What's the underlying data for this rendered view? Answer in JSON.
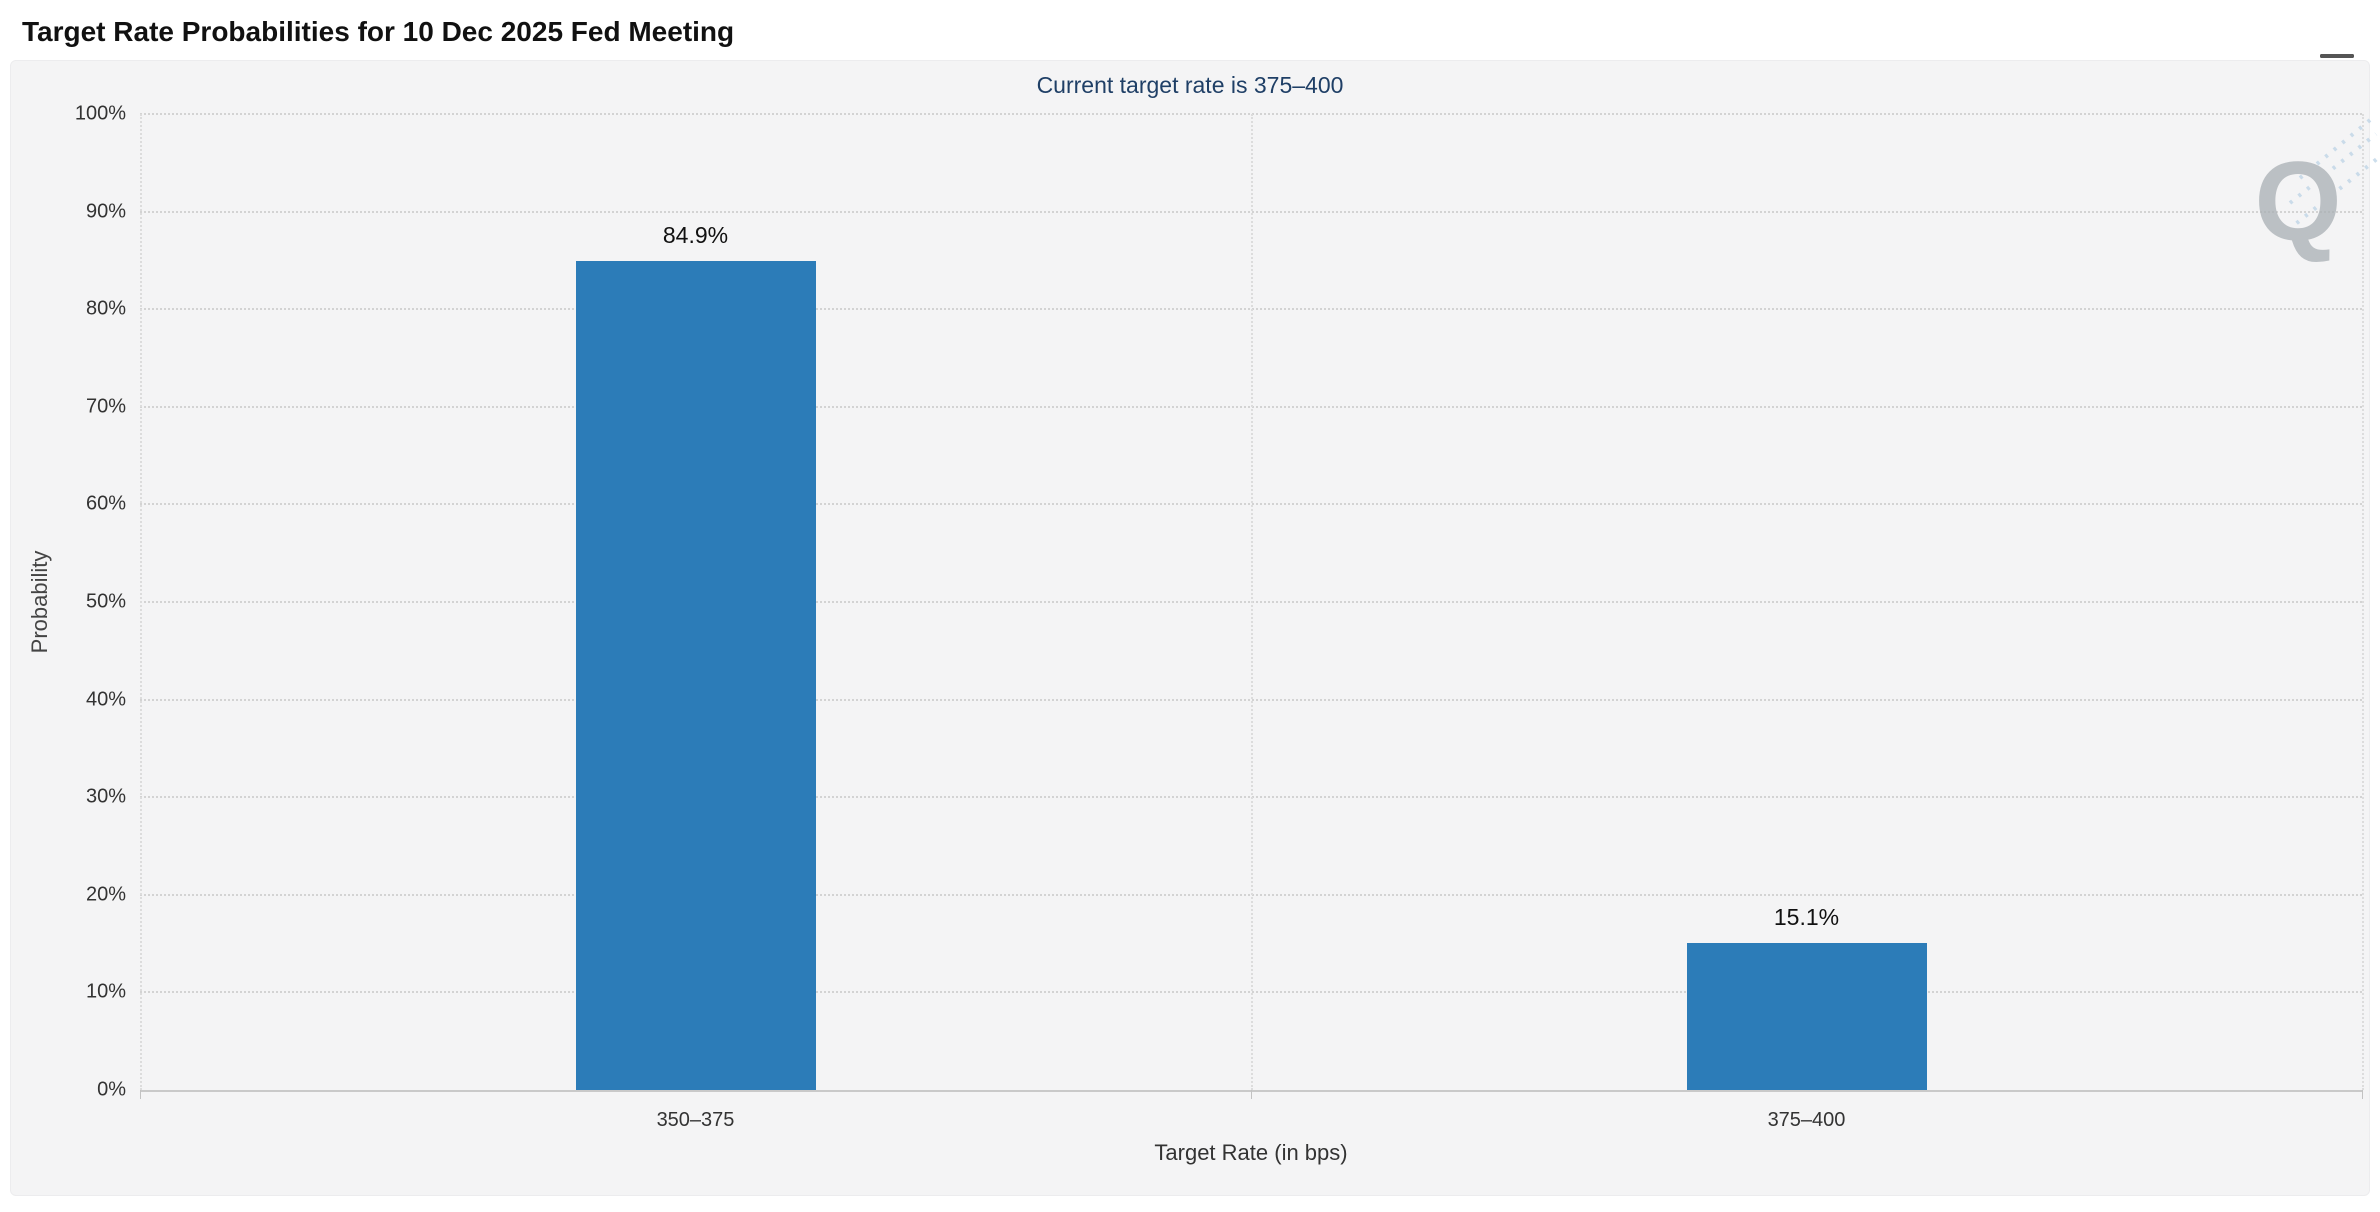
{
  "header": {
    "title": "Target Rate Probabilities for 10 Dec 2025 Fed Meeting"
  },
  "watermark": {
    "letter": "Q"
  },
  "colors": {
    "bar": "#2c7cb8",
    "subtitle": "#1f3f66",
    "grid": "#d3d3d3",
    "axis_text": "#333333",
    "panel_background": "#f4f4f5",
    "page_background": "#ffffff"
  },
  "chart_data": {
    "type": "bar",
    "title": "Target Rate Probabilities for 10 Dec 2025 Fed Meeting",
    "subtitle": "Current target rate is 375–400",
    "categories": [
      "350–375",
      "375–400"
    ],
    "values": [
      84.9,
      15.1
    ],
    "data_labels": [
      "84.9%",
      "15.1%"
    ],
    "xlabel": "Target Rate (in bps)",
    "ylabel": "Probability",
    "ylim": [
      0,
      100
    ],
    "ytick_step": 10,
    "ytick_labels": [
      "0%",
      "10%",
      "20%",
      "30%",
      "40%",
      "50%",
      "60%",
      "70%",
      "80%",
      "90%",
      "100%"
    ],
    "grid": true,
    "legend": false
  }
}
